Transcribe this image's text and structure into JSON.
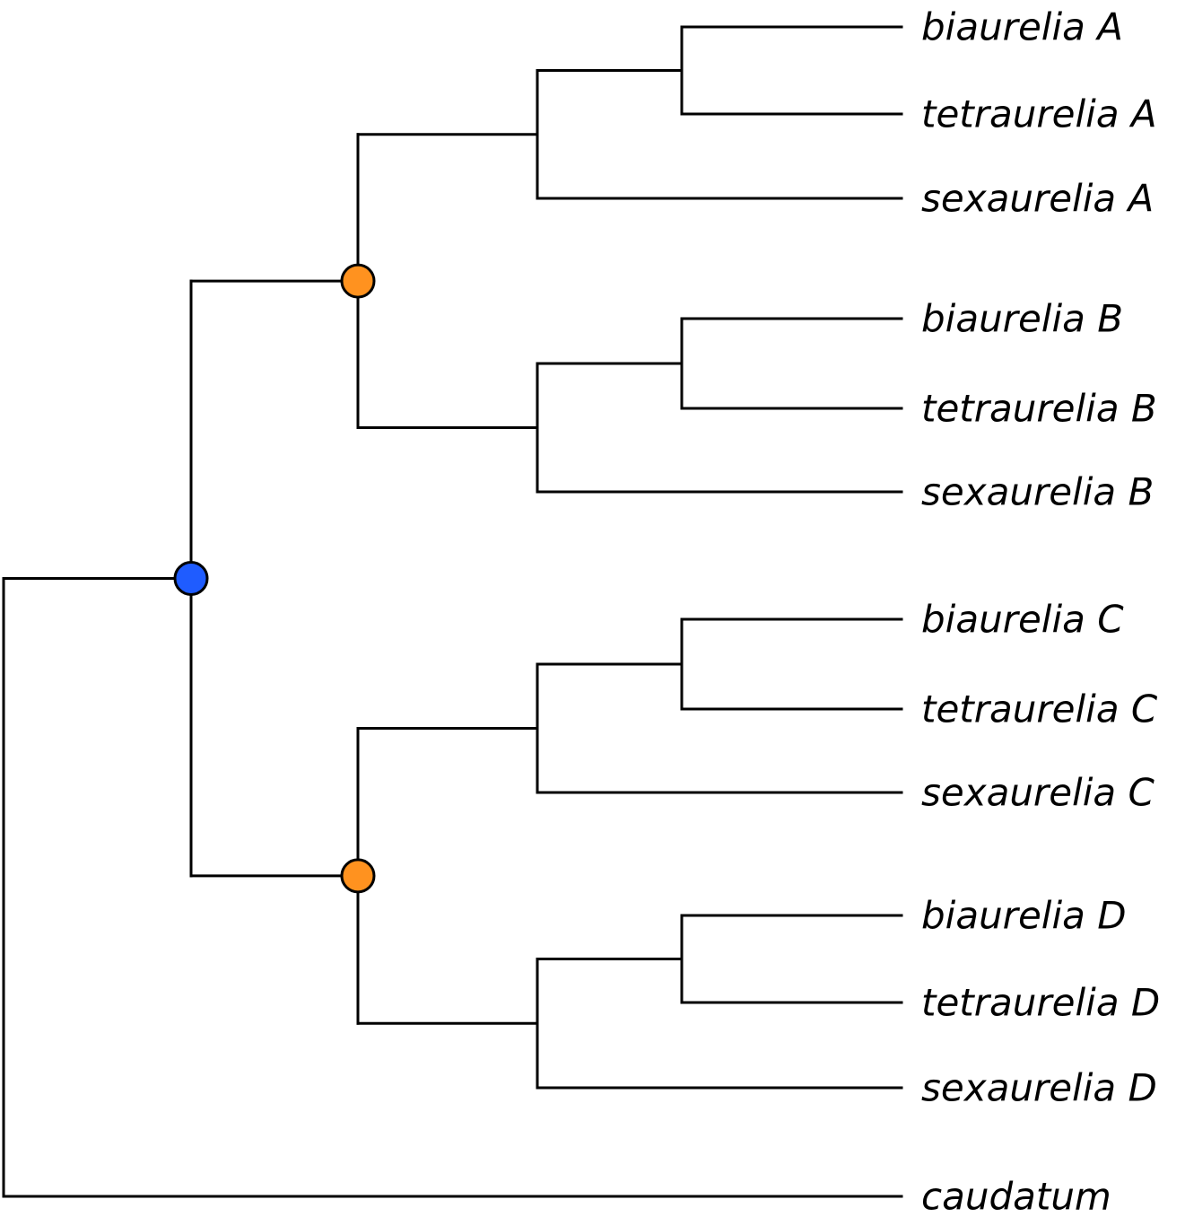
{
  "tree": {
    "colors": {
      "branch": "#000000",
      "root_duplication": "#1f5cff",
      "subclade_duplication": "#ff921f"
    },
    "leaves": [
      {
        "id": "biA",
        "label": "biaurelia A"
      },
      {
        "id": "teA",
        "label": "tetraurelia A"
      },
      {
        "id": "seA",
        "label": "sexaurelia A"
      },
      {
        "id": "biB",
        "label": "biaurelia B"
      },
      {
        "id": "teB",
        "label": "tetraurelia B"
      },
      {
        "id": "seB",
        "label": "sexaurelia B"
      },
      {
        "id": "biC",
        "label": "biaurelia C"
      },
      {
        "id": "teC",
        "label": "tetraurelia C"
      },
      {
        "id": "seC",
        "label": "sexaurelia C"
      },
      {
        "id": "biD",
        "label": "biaurelia D"
      },
      {
        "id": "teD",
        "label": "tetraurelia D"
      },
      {
        "id": "seD",
        "label": "sexaurelia D"
      },
      {
        "id": "cau",
        "label": "caudatum"
      }
    ],
    "topology": {
      "id": "root",
      "children": [
        {
          "id": "dup-blue",
          "marker": "root_duplication",
          "children": [
            {
              "id": "dup-orange-ab",
              "marker": "subclade_duplication",
              "children": [
                {
                  "id": "cladeA",
                  "children": [
                    {
                      "id": "pairA",
                      "children": [
                        {
                          "leaf": "biA"
                        },
                        {
                          "leaf": "teA"
                        }
                      ]
                    },
                    {
                      "leaf": "seA"
                    }
                  ]
                },
                {
                  "id": "cladeB",
                  "children": [
                    {
                      "id": "pairB",
                      "children": [
                        {
                          "leaf": "biB"
                        },
                        {
                          "leaf": "teB"
                        }
                      ]
                    },
                    {
                      "leaf": "seB"
                    }
                  ]
                }
              ]
            },
            {
              "id": "dup-orange-cd",
              "marker": "subclade_duplication",
              "children": [
                {
                  "id": "cladeC",
                  "children": [
                    {
                      "id": "pairC",
                      "children": [
                        {
                          "leaf": "biC"
                        },
                        {
                          "leaf": "teC"
                        }
                      ]
                    },
                    {
                      "leaf": "seC"
                    }
                  ]
                },
                {
                  "id": "cladeD",
                  "children": [
                    {
                      "id": "pairD",
                      "children": [
                        {
                          "leaf": "biD"
                        },
                        {
                          "leaf": "teD"
                        }
                      ]
                    },
                    {
                      "leaf": "seD"
                    }
                  ]
                }
              ]
            }
          ]
        },
        {
          "leaf": "cau"
        }
      ]
    }
  }
}
